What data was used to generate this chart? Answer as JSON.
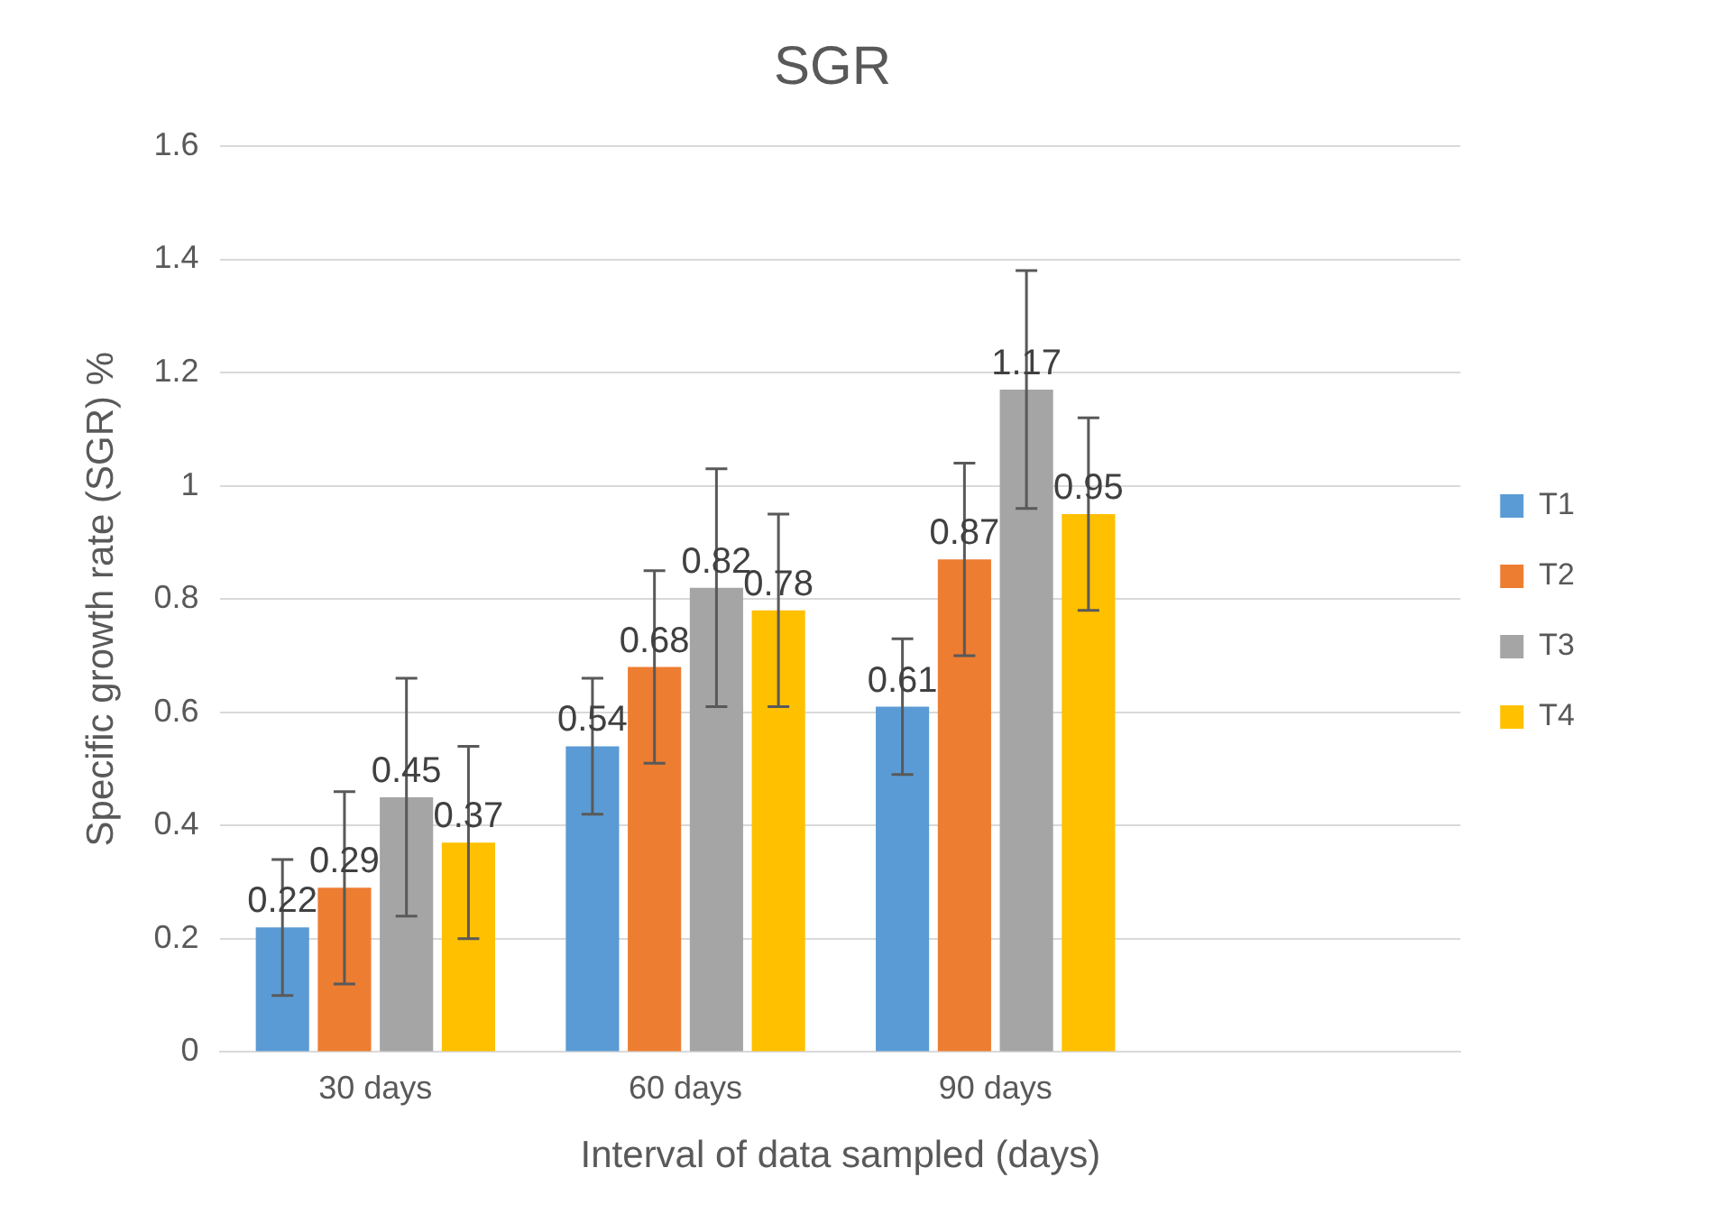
{
  "chart_data": {
    "type": "bar",
    "title": "SGR",
    "xlabel": "Interval of data sampled (days)",
    "ylabel": "Specific growth rate (SGR) %",
    "categories": [
      "30 days",
      "60 days",
      "90 days",
      null
    ],
    "series": [
      {
        "name": "T1",
        "color": "#5b9bd5",
        "values": [
          0.22,
          0.54,
          0.61,
          null
        ],
        "errors": [
          0.12,
          0.12,
          0.12,
          null
        ]
      },
      {
        "name": "T2",
        "color": "#ed7d31",
        "values": [
          0.29,
          0.68,
          0.87,
          null
        ],
        "errors": [
          0.17,
          0.17,
          0.17,
          null
        ]
      },
      {
        "name": "T3",
        "color": "#a5a5a5",
        "values": [
          0.45,
          0.82,
          1.17,
          null
        ],
        "errors": [
          0.21,
          0.21,
          0.21,
          null
        ]
      },
      {
        "name": "T4",
        "color": "#ffc000",
        "values": [
          0.37,
          0.78,
          0.95,
          null
        ],
        "errors": [
          0.17,
          0.17,
          0.17,
          null
        ]
      }
    ],
    "ylim": [
      0,
      1.6
    ],
    "yticks": [
      0,
      0.2,
      0.4,
      0.6,
      0.8,
      1,
      1.2,
      1.4,
      1.6
    ],
    "grid": "y",
    "legend": "right",
    "data_labels": true
  }
}
